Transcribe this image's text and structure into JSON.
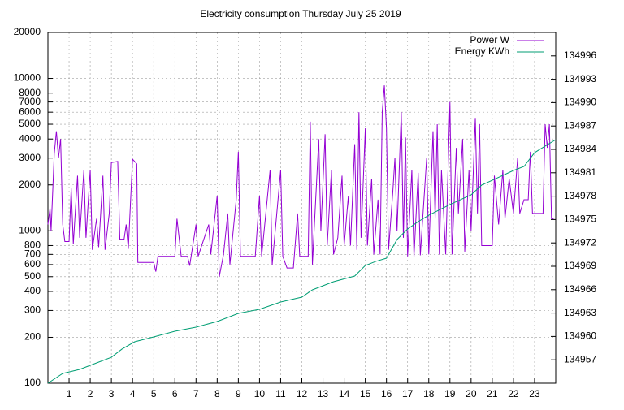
{
  "chart_data": {
    "type": "line",
    "title": "Electricity consumption Thursday July 25 2019",
    "xlim": [
      0,
      24
    ],
    "xticks": [
      1,
      2,
      3,
      4,
      5,
      6,
      7,
      8,
      9,
      10,
      11,
      12,
      13,
      14,
      15,
      16,
      17,
      18,
      19,
      20,
      21,
      22,
      23
    ],
    "yscale": "log",
    "ylim": [
      100,
      20000
    ],
    "yticks": [
      100,
      200,
      300,
      400,
      500,
      600,
      700,
      800,
      1000,
      2000,
      3000,
      4000,
      5000,
      6000,
      7000,
      8000,
      10000,
      20000
    ],
    "y2lim": [
      134954,
      134999
    ],
    "y2ticks": [
      134957,
      134960,
      134963,
      134966,
      134969,
      134972,
      134975,
      134978,
      134981,
      134984,
      134987,
      134990,
      134993,
      134996
    ],
    "grid": true,
    "legend": "top-right",
    "series": [
      {
        "name": "Power W",
        "color": "#9400d3",
        "x": [
          0,
          0.1,
          0.15,
          0.3,
          0.4,
          0.5,
          0.6,
          0.7,
          0.8,
          1.0,
          1.1,
          1.2,
          1.4,
          1.5,
          1.7,
          1.8,
          2.0,
          2.1,
          2.3,
          2.4,
          2.6,
          2.7,
          2.9,
          3.0,
          3.3,
          3.4,
          3.6,
          3.7,
          3.8,
          4.0,
          4.2,
          4.25,
          5.0,
          5.1,
          5.2,
          6.0,
          6.1,
          6.3,
          6.6,
          6.7,
          7.0,
          7.1,
          7.6,
          7.7,
          8.0,
          8.1,
          8.3,
          8.5,
          8.6,
          8.9,
          9.0,
          9.1,
          9.8,
          10.0,
          10.1,
          10.5,
          10.6,
          11.0,
          11.1,
          11.3,
          11.6,
          11.8,
          11.9,
          12.3,
          12.4,
          12.5,
          12.8,
          12.9,
          13.1,
          13.2,
          13.4,
          13.5,
          13.7,
          13.9,
          14.0,
          14.2,
          14.3,
          14.5,
          14.6,
          14.7,
          14.8,
          15.0,
          15.1,
          15.3,
          15.4,
          15.6,
          15.7,
          15.8,
          15.9,
          16.0,
          16.1,
          16.3,
          16.4,
          16.5,
          16.7,
          16.8,
          16.9,
          17.0,
          17.2,
          17.3,
          17.5,
          17.6,
          17.9,
          18.0,
          18.2,
          18.3,
          18.4,
          18.5,
          18.6,
          18.8,
          19.0,
          19.1,
          19.3,
          19.4,
          19.6,
          19.7,
          19.9,
          20.0,
          20.2,
          20.3,
          20.4,
          20.5,
          21.0,
          21.1,
          21.3,
          21.5,
          21.6,
          21.8,
          22.0,
          22.2,
          22.3,
          22.5,
          22.7,
          22.8,
          22.9,
          23.4,
          23.5,
          23.6,
          23.7,
          23.8,
          23.9
        ],
        "values": [
          1100,
          1400,
          1000,
          3200,
          4500,
          3000,
          4000,
          1100,
          850,
          850,
          1900,
          820,
          2300,
          900,
          2500,
          900,
          2500,
          750,
          1200,
          780,
          2300,
          750,
          1300,
          2800,
          2850,
          880,
          880,
          1100,
          760,
          2950,
          2750,
          620,
          620,
          540,
          680,
          680,
          1200,
          680,
          680,
          590,
          1100,
          680,
          1100,
          700,
          1700,
          500,
          700,
          1300,
          600,
          1600,
          3300,
          680,
          680,
          1700,
          680,
          2500,
          600,
          2500,
          680,
          570,
          570,
          1300,
          680,
          680,
          5200,
          600,
          4000,
          1000,
          4300,
          800,
          2500,
          700,
          900,
          2300,
          800,
          1700,
          800,
          3700,
          750,
          6000,
          900,
          4700,
          800,
          2200,
          700,
          1600,
          700,
          6000,
          9000,
          4700,
          750,
          1800,
          3000,
          1000,
          6000,
          900,
          4100,
          680,
          2500,
          670,
          2400,
          690,
          3000,
          700,
          4500,
          1200,
          5000,
          700,
          2500,
          700,
          7000,
          700,
          3500,
          1300,
          4000,
          730,
          2500,
          1000,
          5500,
          1300,
          5000,
          800,
          800,
          2300,
          1100,
          2500,
          1200,
          2200,
          1300,
          3000,
          1300,
          1600,
          1600,
          3300,
          1300,
          1300,
          5000,
          3500,
          5000,
          1200,
          1200
        ]
      },
      {
        "name": "Energy KWh",
        "color": "#009e73",
        "axis": "y2",
        "x": [
          0,
          0.7,
          1.5,
          3,
          3.5,
          4.1,
          5,
          6,
          7,
          8,
          9,
          10,
          11,
          12,
          12.5,
          13,
          13.5,
          14.5,
          15,
          15.5,
          16,
          16.5,
          17,
          17.5,
          18,
          19,
          20,
          20.5,
          21,
          22,
          22.5,
          23,
          23.5,
          24
        ],
        "values": [
          134954,
          134955.25,
          134955.77,
          134957.33,
          134958.38,
          134959.31,
          134959.94,
          134960.67,
          134961.19,
          134961.92,
          134962.96,
          134963.48,
          134964.42,
          134965.04,
          134965.98,
          134966.5,
          134967.02,
          134967.75,
          134969.1,
          134969.63,
          134970.04,
          134972.44,
          134973.79,
          134974.73,
          134975.56,
          134976.92,
          134978.17,
          134979.42,
          134980.04,
          134981.29,
          134981.81,
          134983.58,
          134984.42,
          134985.25
        ]
      }
    ]
  }
}
